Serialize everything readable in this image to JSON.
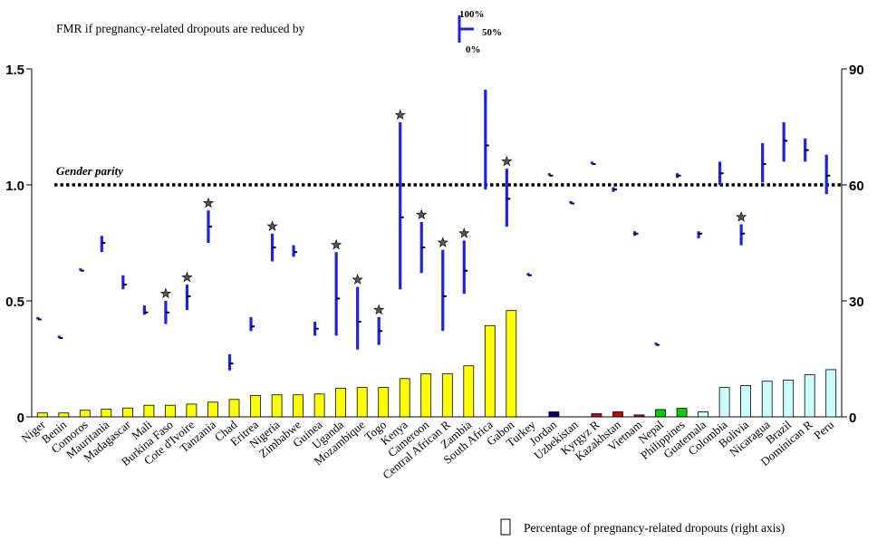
{
  "chart_data": {
    "type": "bar",
    "legend_top": {
      "title": "FMR if pregnancy-related dropouts are reduced by",
      "labels": [
        "100%",
        "50%",
        "0%"
      ],
      "color": "#1f22e0",
      "placement": "top-center"
    },
    "legend_bottom": {
      "label": "Percentage of pregnancy-related dropouts (right axis)",
      "placement": "bottom-right"
    },
    "parity": {
      "label": "Gender parity",
      "value": 1.0
    },
    "left_axis": {
      "ylim": [
        0,
        1.5
      ],
      "ticks": [
        "0",
        "0.5",
        "1.0",
        "1.5"
      ],
      "tick_values": [
        0,
        0.5,
        1.0,
        1.5
      ]
    },
    "right_axis": {
      "ylim": [
        0,
        90
      ],
      "ticks": [
        "0",
        "30",
        "60",
        "90"
      ],
      "tick_values": [
        0,
        30,
        60,
        90
      ]
    },
    "categories": [
      "Niger",
      "Benin",
      "Comoros",
      "Mauritania",
      "Madagascar",
      "Mali",
      "Burkina Faso",
      "Cote d'Ivoire",
      "Tanzania",
      "Chad",
      "Eritrea",
      "Nigeria",
      "Zimbabwe",
      "Guinea",
      "Uganda",
      "Mozambique",
      "Togo",
      "Kenya",
      "Cameroon",
      "Central African R",
      "Zambia",
      "South Africa",
      "Gabon",
      "Turkey",
      "Jordan",
      "Uzbekistan",
      "Kyrgyz R",
      "Kazakhstan",
      "Vietnam",
      "Nepal",
      "Philippines",
      "Guatemala",
      "Colombia",
      "Bolivia",
      "Nicaragua",
      "Brazil",
      "Dominican R",
      "Peru"
    ],
    "label_color": [
      "#000000",
      "#000000",
      "#000000",
      "#000000",
      "#000000",
      "#000000",
      "#000000",
      "#000000",
      "#000000",
      "#000000",
      "#000000",
      "#000000",
      "#000000",
      "#000000",
      "#000000",
      "#000000",
      "#000000",
      "#000000",
      "#000000",
      "#000000",
      "#000000",
      "#000000",
      "#000000",
      "#000000",
      "#000000",
      "#000000",
      "#000000",
      "#000000",
      "#000000",
      "#000000",
      "#000000",
      "#000000",
      "#555555",
      "#555555",
      "#555555",
      "#555555",
      "#555555",
      "#555555"
    ],
    "bar_values": [
      1.0,
      1.0,
      1.7,
      2.0,
      2.3,
      3.0,
      3.0,
      3.3,
      3.8,
      4.5,
      5.5,
      5.7,
      5.7,
      5.9,
      7.4,
      7.6,
      7.6,
      9.9,
      11.1,
      11.1,
      13.2,
      23.6,
      27.5,
      0,
      1.3,
      0,
      0.8,
      1.3,
      0.5,
      1.9,
      2.2,
      1.3,
      7.6,
      8.1,
      9.2,
      9.5,
      10.9,
      12.2
    ],
    "bar_colors": [
      "#ffff00",
      "#ffff00",
      "#ffff00",
      "#ffff00",
      "#ffff00",
      "#ffff00",
      "#ffff00",
      "#ffff00",
      "#ffff00",
      "#ffff00",
      "#ffff00",
      "#ffff00",
      "#ffff00",
      "#ffff00",
      "#ffff00",
      "#ffff00",
      "#ffff00",
      "#ffff00",
      "#ffff00",
      "#ffff00",
      "#ffff00",
      "#ffff00",
      "#ffff00",
      "#ffffff",
      "#000080",
      "#ffffff",
      "#cc0000",
      "#cc0000",
      "#cc0000",
      "#00cc00",
      "#00cc00",
      "#ccffff",
      "#ccffff",
      "#ccffff",
      "#ccffff",
      "#ccffff",
      "#ccffff",
      "#ccffff"
    ],
    "fmr_low": [
      0.42,
      0.34,
      0.63,
      0.71,
      0.55,
      0.44,
      0.4,
      0.46,
      0.75,
      0.2,
      0.37,
      0.67,
      0.69,
      0.35,
      0.35,
      0.29,
      0.31,
      0.55,
      0.62,
      0.37,
      0.53,
      0.98,
      0.82,
      0.61,
      1.04,
      0.92,
      1.09,
      0.97,
      0.78,
      0.31,
      1.03,
      0.77,
      1.0,
      0.74,
      1.01,
      1.1,
      1.1,
      0.96
    ],
    "fmr_mid": [
      0.42,
      0.34,
      0.63,
      0.75,
      0.57,
      0.45,
      0.45,
      0.52,
      0.82,
      0.23,
      0.39,
      0.73,
      0.71,
      0.38,
      0.51,
      0.41,
      0.37,
      0.86,
      0.73,
      0.52,
      0.63,
      1.17,
      0.94,
      0.61,
      1.04,
      0.92,
      1.09,
      0.98,
      0.79,
      0.31,
      1.04,
      0.79,
      1.05,
      0.79,
      1.09,
      1.19,
      1.15,
      1.04
    ],
    "fmr_high": [
      0.43,
      0.35,
      0.64,
      0.78,
      0.61,
      0.48,
      0.5,
      0.57,
      0.89,
      0.27,
      0.43,
      0.79,
      0.74,
      0.41,
      0.71,
      0.56,
      0.43,
      1.27,
      0.84,
      0.72,
      0.76,
      1.41,
      1.07,
      0.62,
      1.05,
      0.93,
      1.1,
      0.99,
      0.8,
      0.32,
      1.05,
      0.8,
      1.1,
      0.83,
      1.18,
      1.27,
      1.2,
      1.13
    ],
    "star": [
      false,
      false,
      false,
      false,
      false,
      false,
      true,
      true,
      true,
      false,
      false,
      true,
      false,
      false,
      true,
      true,
      true,
      true,
      true,
      true,
      true,
      false,
      true,
      false,
      false,
      false,
      false,
      false,
      false,
      false,
      false,
      false,
      false,
      true,
      false,
      false,
      false,
      false
    ]
  }
}
